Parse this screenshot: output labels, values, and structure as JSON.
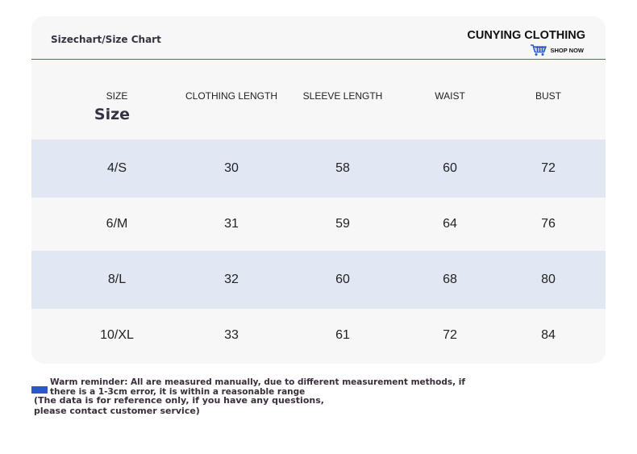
{
  "header": {
    "title": "Sizechart/Size Chart",
    "brand": "CUNYING CLOTHING",
    "shop_now": "SHOP NOW",
    "accent_color": "#4a63a8"
  },
  "table": {
    "columns": [
      "SIZE",
      "CLOTHING LENGTH",
      "SLEEVE LENGTH",
      "WAIST",
      "BUST"
    ],
    "size_heading": "Size",
    "rows": [
      [
        "4/S",
        "30",
        "58",
        "60",
        "72"
      ],
      [
        "6/M",
        "31",
        "59",
        "64",
        "76"
      ],
      [
        "8/L",
        "32",
        "60",
        "68",
        "80"
      ],
      [
        "10/XL",
        "33",
        "61",
        "72",
        "84"
      ]
    ],
    "row_colors": {
      "alt": "#e2e7f4",
      "plain": "#f7f7f7"
    }
  },
  "note": {
    "reminder": "Warm reminder: All are measured manually, due to different measurement methods, if there is a 1-3cm error, it is within a reasonable range",
    "reference": "(The data is for reference only, if you have any questions, please contact customer service)"
  }
}
